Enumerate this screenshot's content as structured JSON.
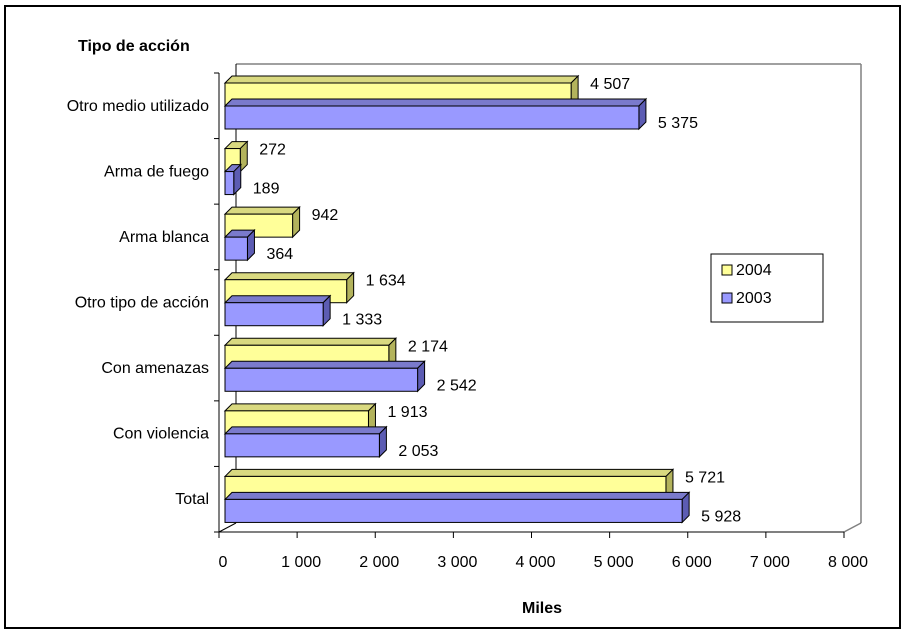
{
  "chart_data": {
    "type": "bar",
    "orientation": "horizontal",
    "y_axis_title": "Tipo de acción",
    "x_axis_title": "Miles",
    "categories": [
      "Otro medio utilizado",
      "Arma de fuego",
      "Arma blanca",
      "Otro tipo de acción",
      "Con amenazas",
      "Con violencia",
      "Total"
    ],
    "series": [
      {
        "name": "2004",
        "color": "#ffff99",
        "values": [
          4507,
          272,
          942,
          1634,
          2174,
          1913,
          5721
        ],
        "labels": [
          "4  507",
          "272",
          "942",
          "1  634",
          "2  174",
          "1  913",
          "5  721"
        ]
      },
      {
        "name": "2003",
        "color": "#9999ff",
        "values": [
          5375,
          189,
          364,
          1333,
          2542,
          2053,
          5928
        ],
        "labels": [
          "5  375",
          "189",
          "364",
          "1  333",
          "2  542",
          "2  053",
          "5  928"
        ]
      }
    ],
    "xlim": [
      0,
      8000
    ],
    "x_ticks": [
      0,
      1000,
      2000,
      3000,
      4000,
      5000,
      6000,
      7000,
      8000
    ],
    "x_tick_labels": [
      "0",
      "1 000",
      "2 000",
      "3 000",
      "4 000",
      "5 000",
      "6 000",
      "7 000",
      "8 000"
    ],
    "legend_position": "right",
    "grid": false
  }
}
